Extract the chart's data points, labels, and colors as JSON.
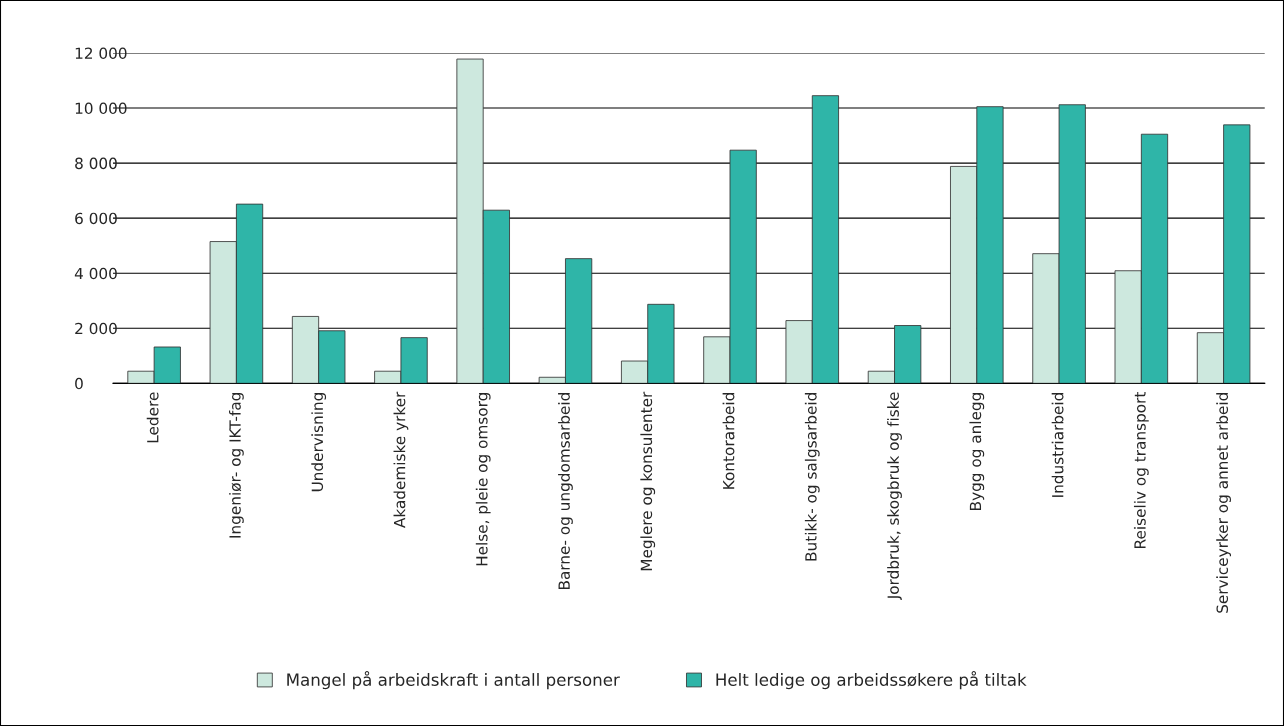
{
  "chart_data": {
    "type": "bar",
    "categories": [
      "Ledere",
      "Ingeniør- og IKT-fag",
      "Undervisning",
      "Akademiske yrker",
      "Helse, pleie og omsorg",
      "Barne- og ungdomsarbeid",
      "Meglere og konsulenter",
      "Kontorarbeid",
      "Butikk- og salgsarbeid",
      "Jordbruk, skogbruk og fiske",
      "Bygg og anlegg",
      "Industriarbeid",
      "Reiseliv og transport",
      "Serviceyrker og annet arbeid"
    ],
    "series": [
      {
        "name": "Mangel på arbeidskraft i antall personer",
        "color": "#cde8de",
        "values": [
          440,
          5150,
          2430,
          440,
          11780,
          220,
          810,
          1690,
          2280,
          440,
          7880,
          4710,
          4090,
          1840
        ]
      },
      {
        "name": "Helt ledige og arbeidssøkere på tiltak",
        "color": "#2fb5a8",
        "values": [
          1320,
          6510,
          1910,
          1660,
          6290,
          4530,
          2870,
          8470,
          10450,
          2100,
          10050,
          10120,
          9050,
          9390
        ]
      }
    ],
    "ylim": [
      0,
      12000
    ],
    "yticks": [
      0,
      {
        "value": 2000,
        "label": "2 000"
      },
      {
        "value": 4000,
        "label": "4 000"
      },
      {
        "value": 6000,
        "label": "6 000"
      },
      {
        "value": 8000,
        "label": "8 000"
      },
      {
        "value": 10000,
        "label": "10 000"
      },
      {
        "value": 12000,
        "label": "12 000"
      }
    ],
    "grid": "y",
    "legend": "bottom"
  }
}
